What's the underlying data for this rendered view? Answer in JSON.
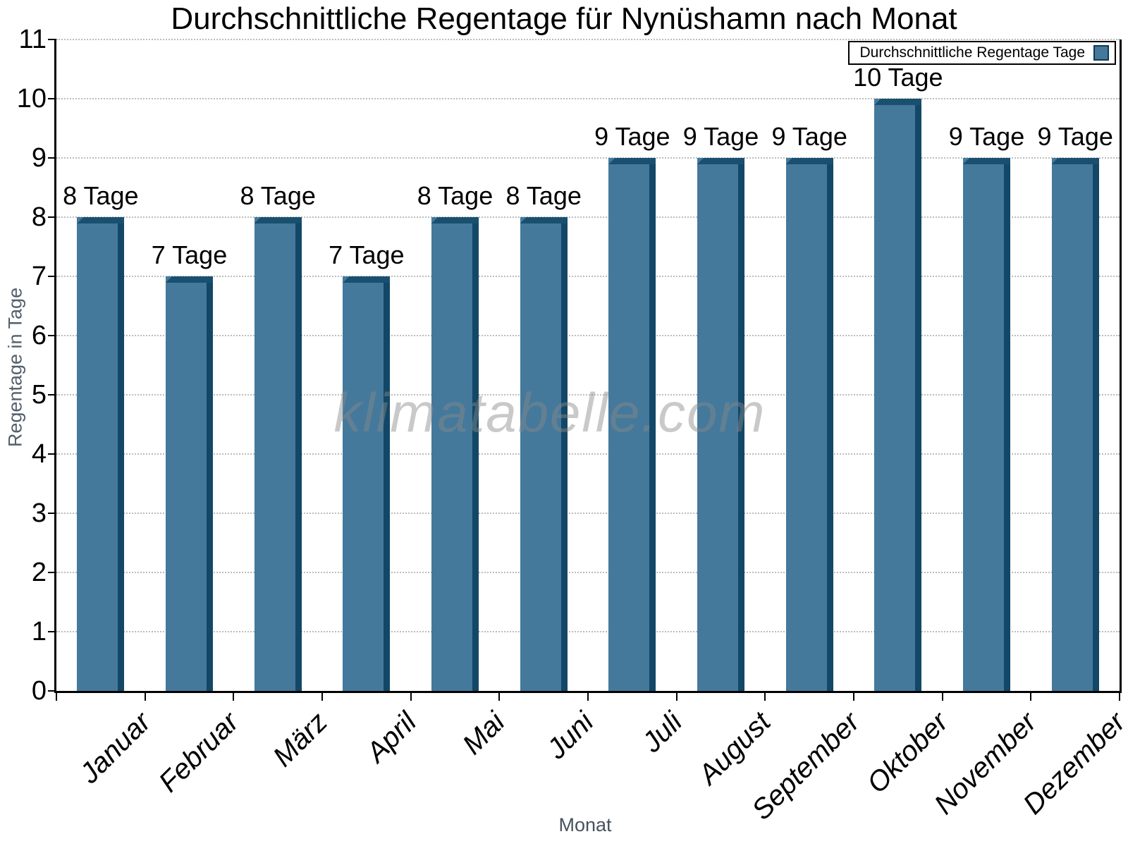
{
  "title": "Durchschnittliche Regentage für Nynüshamn nach Monat",
  "legend": {
    "label": "Durchschnittliche Regentage Tage",
    "position": "top-right",
    "swatch_color": "#44799c"
  },
  "watermark": "klimatabelle.com",
  "chart_data": {
    "type": "bar",
    "title": "Durchschnittliche Regentage für Nynüshamn nach Monat",
    "xlabel": "Monat",
    "ylabel": "Regentage in Tage",
    "categories": [
      "Januar",
      "Februar",
      "März",
      "April",
      "Mai",
      "Juni",
      "Juli",
      "August",
      "September",
      "Oktober",
      "November",
      "Dezember"
    ],
    "values": [
      8,
      7,
      8,
      7,
      8,
      8,
      9,
      9,
      9,
      10,
      9,
      9
    ],
    "bar_labels": [
      "8 Tage",
      "7 Tage",
      "8 Tage",
      "7 Tage",
      "8 Tage",
      "8 Tage",
      "9 Tage",
      "9 Tage",
      "9 Tage",
      "10 Tage",
      "9 Tage",
      "9 Tage"
    ],
    "ylim": [
      0,
      11
    ],
    "yticks": [
      0,
      1,
      2,
      3,
      4,
      5,
      6,
      7,
      8,
      9,
      10,
      11
    ],
    "grid": "horizontal-dotted",
    "legend_entries": [
      "Durchschnittliche Regentage Tage"
    ],
    "colors": {
      "bar_face": "#44799c",
      "bar_side": "#134767",
      "bar_top": "#19506f",
      "grid": "#bcbcbc",
      "axis": "#000000",
      "axis_title": "#525f6b",
      "watermark": "#8a8a8a"
    }
  }
}
